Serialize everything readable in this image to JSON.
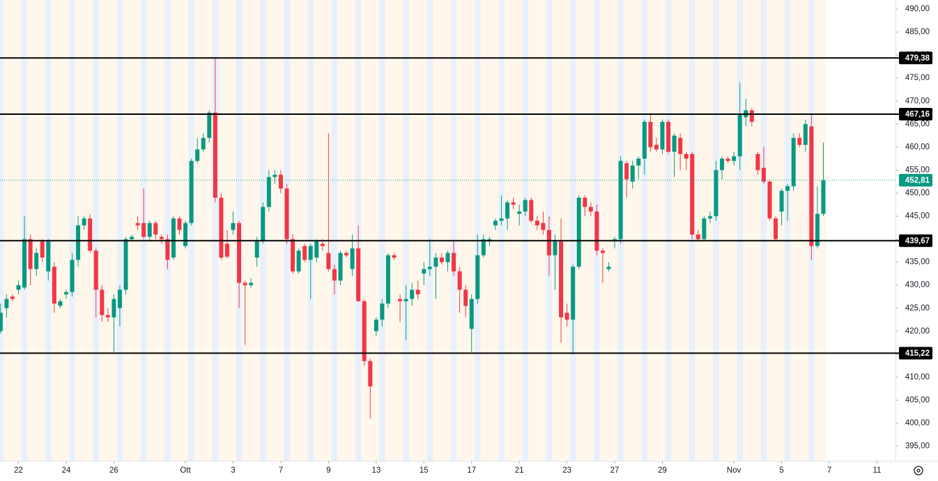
{
  "chart_data": {
    "type": "candlestick",
    "up_color": "#089981",
    "down_color": "#f23645",
    "open": [
      420,
      425,
      427.5,
      429,
      429.5,
      440,
      433.5,
      439.5,
      433,
      434,
      425.5,
      428,
      428.5,
      435.5,
      443,
      444.5,
      437.5,
      429,
      423.5,
      423,
      425,
      429,
      440,
      443.5,
      443.5,
      440.5,
      443.5,
      440.5,
      440,
      436,
      444.5,
      438.5,
      443.5,
      457,
      459.5,
      462,
      467.5,
      449,
      439,
      442,
      443.5,
      430.5,
      430,
      436,
      439.5,
      447,
      453.5,
      454,
      451,
      440,
      433,
      438.5,
      435.5,
      436,
      439,
      437,
      433.5,
      431,
      437,
      433.5,
      438,
      426.5,
      413.5,
      420,
      422.5,
      426,
      436.5,
      427,
      426.5,
      427,
      429,
      432.5,
      433.5,
      434,
      436,
      435,
      437,
      433,
      429,
      420.5,
      427,
      436.5,
      439.5,
      443,
      444,
      444.5,
      448,
      445.5,
      446,
      448.5,
      444,
      443.5,
      442,
      436.5,
      439.5,
      424,
      422.5,
      434,
      449,
      447,
      446,
      437.5,
      433.5,
      439.5,
      440,
      456.5,
      452.5,
      456,
      457.5,
      465.5,
      460.5,
      459.5,
      465.5,
      459,
      462,
      458.5,
      458.5,
      441,
      440,
      444.5,
      445,
      455,
      457.5,
      457,
      458,
      466.5,
      468,
      458.5,
      455.5,
      452.5,
      444.5,
      446,
      450.5,
      451.5,
      462,
      460.5,
      464.5,
      438.5,
      445.5
    ],
    "high": [
      426,
      428,
      428,
      431,
      445,
      441,
      438,
      440,
      440,
      435,
      427,
      429,
      437,
      445,
      445,
      445.5,
      438,
      430,
      425,
      428,
      430,
      440.5,
      441,
      445,
      451,
      444,
      444,
      441,
      441,
      445,
      445,
      444,
      457.5,
      462,
      463,
      468,
      479.38,
      450,
      442,
      446,
      444,
      431,
      431.5,
      440.5,
      448,
      455,
      455,
      455,
      452,
      441,
      438,
      439,
      439,
      440,
      440,
      463,
      434.5,
      437.5,
      437.5,
      441,
      443,
      427,
      414,
      423,
      427,
      437,
      437,
      428,
      430,
      430.5,
      431,
      435,
      440,
      437,
      437,
      437.5,
      439.5,
      434,
      430,
      428,
      441,
      441,
      440.5,
      444.5,
      449.5,
      448.5,
      449,
      447.5,
      449,
      449,
      445,
      446,
      445,
      441,
      444.5,
      426,
      434.5,
      449.5,
      449.5,
      448,
      447.5,
      438,
      435,
      440.5,
      458,
      457,
      457,
      458,
      466,
      467,
      462,
      466,
      466,
      463,
      463,
      459,
      459,
      442,
      445,
      446,
      457,
      458,
      458,
      459,
      474,
      470.5,
      468.5,
      459,
      460,
      453,
      445,
      451,
      452,
      463,
      463,
      466,
      467,
      451.5,
      461
    ],
    "low": [
      419.5,
      423,
      426.5,
      428,
      429,
      430,
      432,
      435,
      431,
      424,
      425,
      427,
      427.5,
      434,
      442,
      437,
      423,
      422,
      422,
      415.5,
      421,
      428,
      439.5,
      442,
      440,
      439.5,
      440,
      439,
      433.5,
      435.5,
      441,
      438,
      443,
      456.5,
      459,
      461,
      448,
      435.5,
      435.8,
      441,
      425,
      417,
      429.5,
      434,
      439,
      446,
      452,
      450,
      439,
      432.5,
      432.5,
      435,
      427,
      435,
      437.5,
      433,
      428,
      430,
      436,
      432,
      426.5,
      412.5,
      401,
      419,
      421,
      425,
      435.5,
      422,
      418,
      425.5,
      427,
      430,
      432,
      427,
      434.5,
      433,
      432,
      424,
      423,
      415.5,
      426,
      436,
      438.5,
      442,
      443,
      442,
      446.5,
      443,
      445,
      443.5,
      442,
      441,
      432,
      429,
      417.5,
      421,
      415,
      433.5,
      445,
      445,
      436.5,
      430.5,
      433,
      438,
      439,
      449,
      451,
      453,
      454,
      459,
      459,
      458.5,
      458.5,
      453.5,
      455,
      455,
      440,
      439.5,
      439.5,
      443.5,
      444,
      453,
      456.5,
      456,
      455,
      464.5,
      464.5,
      454,
      452,
      444,
      439.5,
      443,
      444,
      450.5,
      460,
      459,
      435.5,
      438,
      445
    ],
    "close": [
      424,
      427,
      427,
      430,
      440,
      433.5,
      437,
      436,
      439.5,
      426,
      426.5,
      428.5,
      435.5,
      443,
      444.5,
      437.5,
      429,
      423.5,
      423,
      427,
      429,
      440,
      440.5,
      443,
      440.5,
      443.5,
      441,
      440,
      435.5,
      444.5,
      442,
      443.5,
      457,
      459.5,
      462,
      467.5,
      449,
      436,
      436.2,
      443.5,
      430.5,
      430,
      430.5,
      439.5,
      447,
      453.5,
      454,
      451,
      440,
      433,
      437.5,
      435.5,
      438.5,
      439.5,
      438.5,
      433.5,
      431,
      437,
      436.5,
      438,
      426.5,
      413.5,
      408,
      422.5,
      426,
      436.5,
      436,
      426.5,
      427,
      429,
      428,
      433.5,
      434,
      436,
      435,
      437,
      433,
      429,
      425.5,
      427,
      436.5,
      440,
      440,
      444,
      444.5,
      448,
      447.5,
      446,
      448.5,
      444,
      443,
      442,
      436.5,
      439.5,
      423,
      422.5,
      434,
      449,
      447,
      446,
      437.5,
      437,
      434,
      440,
      457,
      453,
      456,
      457.5,
      465.5,
      460,
      459.5,
      465.5,
      459,
      462.5,
      458.5,
      457.5,
      441,
      440,
      444.5,
      445,
      455,
      457.5,
      457,
      458,
      467,
      468,
      465.5,
      455,
      452.5,
      444.5,
      440,
      450.5,
      451.5,
      462,
      460.5,
      465,
      438.5,
      445.5,
      452.81
    ],
    "xlim": [
      -0.1,
      150.1
    ],
    "xticks": [
      {
        "value": 3,
        "label": "22"
      },
      {
        "value": 11,
        "label": "24"
      },
      {
        "value": 19,
        "label": "26"
      },
      {
        "value": 31,
        "label": "Ott"
      },
      {
        "value": 39,
        "label": "3"
      },
      {
        "value": 47,
        "label": "7"
      },
      {
        "value": 55,
        "label": "9"
      },
      {
        "value": 63,
        "label": "13"
      },
      {
        "value": 71,
        "label": "15"
      },
      {
        "value": 79,
        "label": "17"
      },
      {
        "value": 87,
        "label": "21"
      },
      {
        "value": 95,
        "label": "23"
      },
      {
        "value": 103,
        "label": "27"
      },
      {
        "value": 111,
        "label": "29"
      },
      {
        "value": 123,
        "label": "Nov"
      },
      {
        "value": 131,
        "label": "5"
      },
      {
        "value": 139,
        "label": "7"
      },
      {
        "value": 147,
        "label": "11"
      }
    ],
    "ylim": [
      391.83,
      491.97
    ],
    "yticks": [
      {
        "value": 395,
        "label": "395,00"
      },
      {
        "value": 400,
        "label": "400,00"
      },
      {
        "value": 405,
        "label": "405,00"
      },
      {
        "value": 410,
        "label": "410,00"
      },
      {
        "value": 415,
        "label": "415,00"
      },
      {
        "value": 420,
        "label": "420,00"
      },
      {
        "value": 425,
        "label": "425,00"
      },
      {
        "value": 430,
        "label": "430,00"
      },
      {
        "value": 435,
        "label": "435,00"
      },
      {
        "value": 440,
        "label": "440,00"
      },
      {
        "value": 445,
        "label": "445,00"
      },
      {
        "value": 450,
        "label": "450,00"
      },
      {
        "value": 455,
        "label": "455,00"
      },
      {
        "value": 460,
        "label": "460,00"
      },
      {
        "value": 465,
        "label": "465,00"
      },
      {
        "value": 470,
        "label": "470,00"
      },
      {
        "value": 475,
        "label": "475,00"
      },
      {
        "value": 480,
        "label": "480,00"
      },
      {
        "value": 485,
        "label": "485,00"
      },
      {
        "value": 490,
        "label": "490,00"
      }
    ],
    "levels": [
      {
        "value": 479.38,
        "label": "479,38"
      },
      {
        "value": 467.16,
        "label": "467,16"
      },
      {
        "value": 439.67,
        "label": "439,67"
      },
      {
        "value": 415.22,
        "label": "415,22"
      }
    ],
    "last_price": {
      "value": 452.81,
      "label": "452,81"
    }
  }
}
